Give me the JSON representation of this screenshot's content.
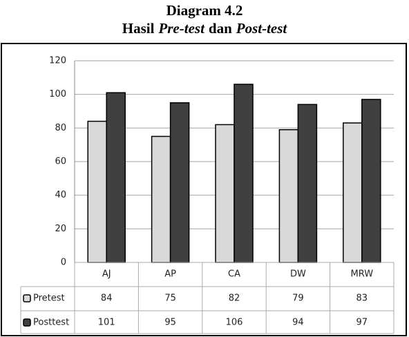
{
  "chart_data": {
    "type": "bar",
    "title": "Diagram 4.2",
    "subtitle_parts": [
      {
        "text": "Hasil",
        "italic": false
      },
      {
        "text": "Pre-test",
        "italic": true
      },
      {
        "text": "dan",
        "italic": false
      },
      {
        "text": "Post-test",
        "italic": true
      }
    ],
    "categories": [
      "AJ",
      "AP",
      "CA",
      "DW",
      "MRW"
    ],
    "series": [
      {
        "name": "Pretest",
        "color": "#d9d9d9",
        "values": [
          84,
          75,
          82,
          79,
          83
        ]
      },
      {
        "name": "Posttest",
        "color": "#404040",
        "values": [
          101,
          95,
          106,
          94,
          97
        ]
      }
    ],
    "ylim": [
      0,
      120
    ],
    "yticks": [
      0,
      20,
      40,
      60,
      80,
      100,
      120
    ],
    "grid": true
  }
}
